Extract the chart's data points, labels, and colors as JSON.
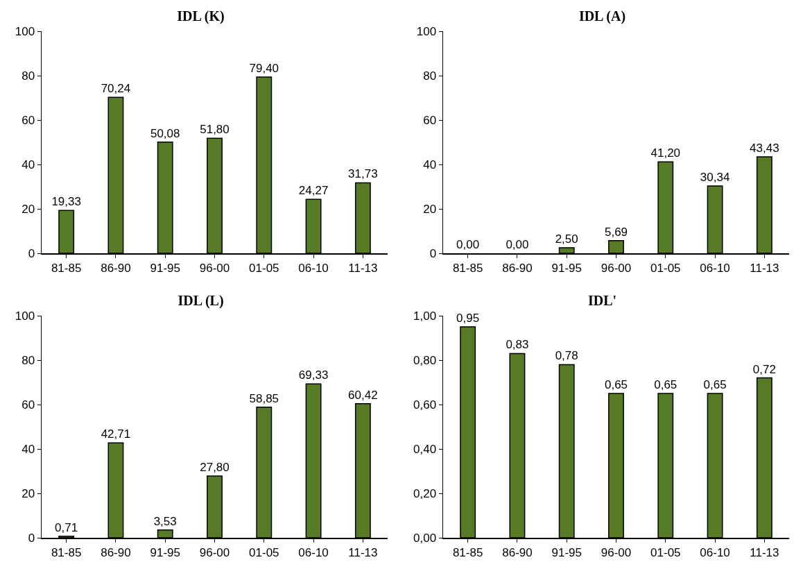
{
  "chart_data": [
    {
      "type": "bar",
      "title": "IDL (K)",
      "categories": [
        "81-85",
        "86-90",
        "91-95",
        "96-00",
        "01-05",
        "06-10",
        "11-13"
      ],
      "values": [
        19.33,
        70.24,
        50.08,
        51.8,
        79.4,
        24.27,
        31.73
      ],
      "value_labels": [
        "19,33",
        "70,24",
        "50,08",
        "51,80",
        "79,40",
        "24,27",
        "31,73"
      ],
      "color": "#577a26",
      "ylim": [
        0,
        100
      ],
      "yticks": [
        0,
        20,
        40,
        60,
        80,
        100
      ]
    },
    {
      "type": "bar",
      "title": "IDL (A)",
      "categories": [
        "81-85",
        "86-90",
        "91-95",
        "96-00",
        "01-05",
        "06-10",
        "11-13"
      ],
      "values": [
        0.0,
        0.0,
        2.5,
        5.69,
        41.2,
        30.34,
        43.43
      ],
      "value_labels": [
        "0,00",
        "0,00",
        "2,50",
        "5,69",
        "41,20",
        "30,34",
        "43,43"
      ],
      "color": "#577a26",
      "ylim": [
        0,
        100
      ],
      "yticks": [
        0,
        20,
        40,
        60,
        80,
        100
      ]
    },
    {
      "type": "bar",
      "title": "IDL (L)",
      "categories": [
        "81-85",
        "86-90",
        "91-95",
        "96-00",
        "01-05",
        "06-10",
        "11-13"
      ],
      "values": [
        0.71,
        42.71,
        3.53,
        27.8,
        58.85,
        69.33,
        60.42
      ],
      "value_labels": [
        "0,71",
        "42,71",
        "3,53",
        "27,80",
        "58,85",
        "69,33",
        "60,42"
      ],
      "color": "#577a26",
      "ylim": [
        0,
        100
      ],
      "yticks": [
        0,
        20,
        40,
        60,
        80,
        100
      ]
    },
    {
      "type": "bar",
      "title": "IDL'",
      "categories": [
        "81-85",
        "86-90",
        "91-95",
        "96-00",
        "01-05",
        "06-10",
        "11-13"
      ],
      "values": [
        0.95,
        0.83,
        0.78,
        0.65,
        0.65,
        0.65,
        0.72
      ],
      "value_labels": [
        "0,95",
        "0,83",
        "0,78",
        "0,65",
        "0,65",
        "0,65",
        "0,72"
      ],
      "color": "#577a26",
      "ylim": [
        0,
        1
      ],
      "yticks": [
        {
          "value": 0,
          "label": "0,00"
        },
        {
          "value": 0.2,
          "label": "0,20"
        },
        {
          "value": 0.4,
          "label": "0,40"
        },
        {
          "value": 0.6,
          "label": "0,60"
        },
        {
          "value": 0.8,
          "label": "0,80"
        },
        {
          "value": 1,
          "label": "1,00"
        }
      ]
    }
  ]
}
